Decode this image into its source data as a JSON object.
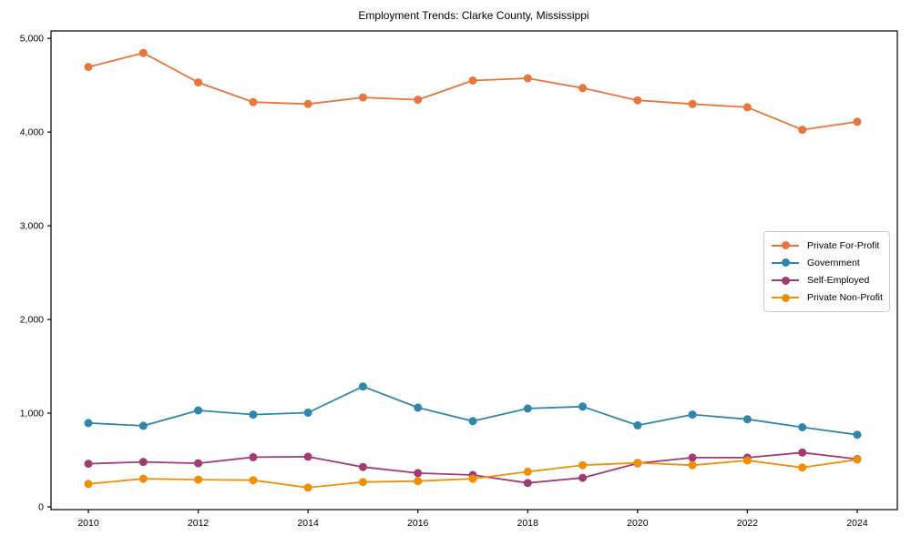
{
  "chart_data": {
    "type": "line",
    "title": "Employment Trends: Clarke County, Mississippi",
    "xlabel": "",
    "ylabel": "",
    "x": [
      2010,
      2011,
      2012,
      2013,
      2014,
      2015,
      2016,
      2017,
      2018,
      2019,
      2020,
      2021,
      2022,
      2023,
      2024
    ],
    "series": [
      {
        "name": "Private For-Profit",
        "color": "#E8763C",
        "values": [
          4695,
          4845,
          4530,
          4320,
          4300,
          4370,
          4345,
          4550,
          4575,
          4470,
          4340,
          4300,
          4265,
          4025,
          4110
        ]
      },
      {
        "name": "Government",
        "color": "#2E86AB",
        "values": [
          895,
          865,
          1030,
          985,
          1005,
          1285,
          1060,
          915,
          1050,
          1070,
          870,
          985,
          935,
          850,
          770
        ]
      },
      {
        "name": "Self-Employed",
        "color": "#A23B72",
        "values": [
          460,
          480,
          465,
          530,
          535,
          425,
          360,
          340,
          255,
          310,
          465,
          525,
          525,
          580,
          510
        ]
      },
      {
        "name": "Private Non-Profit",
        "color": "#F18F01",
        "values": [
          245,
          300,
          290,
          285,
          205,
          265,
          275,
          300,
          375,
          445,
          470,
          445,
          495,
          420,
          505
        ]
      }
    ],
    "xticks": [
      2010,
      2012,
      2014,
      2016,
      2018,
      2020,
      2022,
      2024
    ],
    "xtick_labels": [
      "2010",
      "2012",
      "2014",
      "2016",
      "2018",
      "2020",
      "2022",
      "2024"
    ],
    "yticks": [
      0,
      1000,
      2000,
      3000,
      4000,
      5000
    ],
    "ytick_labels": [
      "0",
      "1,000",
      "2,000",
      "3,000",
      "4,000",
      "5,000"
    ],
    "xlim": [
      2009.3,
      2024.75
    ],
    "ylim": [
      0,
      5100
    ],
    "grid": false,
    "legend_position": "right-inside",
    "marker": "circle",
    "frame_color": "#000000"
  }
}
